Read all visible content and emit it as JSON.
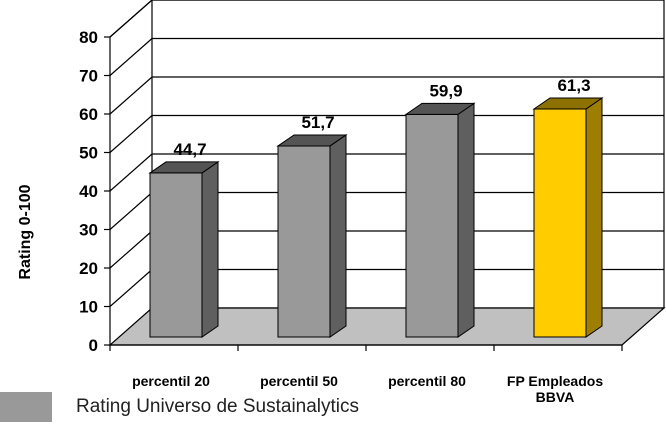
{
  "chart_data": {
    "type": "bar",
    "categories": [
      "percentil 20",
      "percentil 50",
      "percentil 80",
      "FP Empleados BBVA"
    ],
    "values": [
      44.7,
      51.7,
      59.9,
      61.3
    ],
    "value_labels": [
      "44,7",
      "51,7",
      "59,9",
      "61,3"
    ],
    "ylabel": "Rating 0-100",
    "ylim": [
      0,
      80
    ],
    "yticks": [
      "0",
      "10",
      "20",
      "30",
      "40",
      "50",
      "60",
      "70",
      "80"
    ],
    "grid": true,
    "legend": {
      "position": "bottom-left",
      "entries": [
        {
          "label": "Rating Universo de Sustainalytics",
          "color": "#999999"
        }
      ]
    },
    "colors": {
      "default_bar": "#999999",
      "highlight_bar": "#ffcc00",
      "floor": "#c0c0c0"
    },
    "highlight_index": 3
  }
}
